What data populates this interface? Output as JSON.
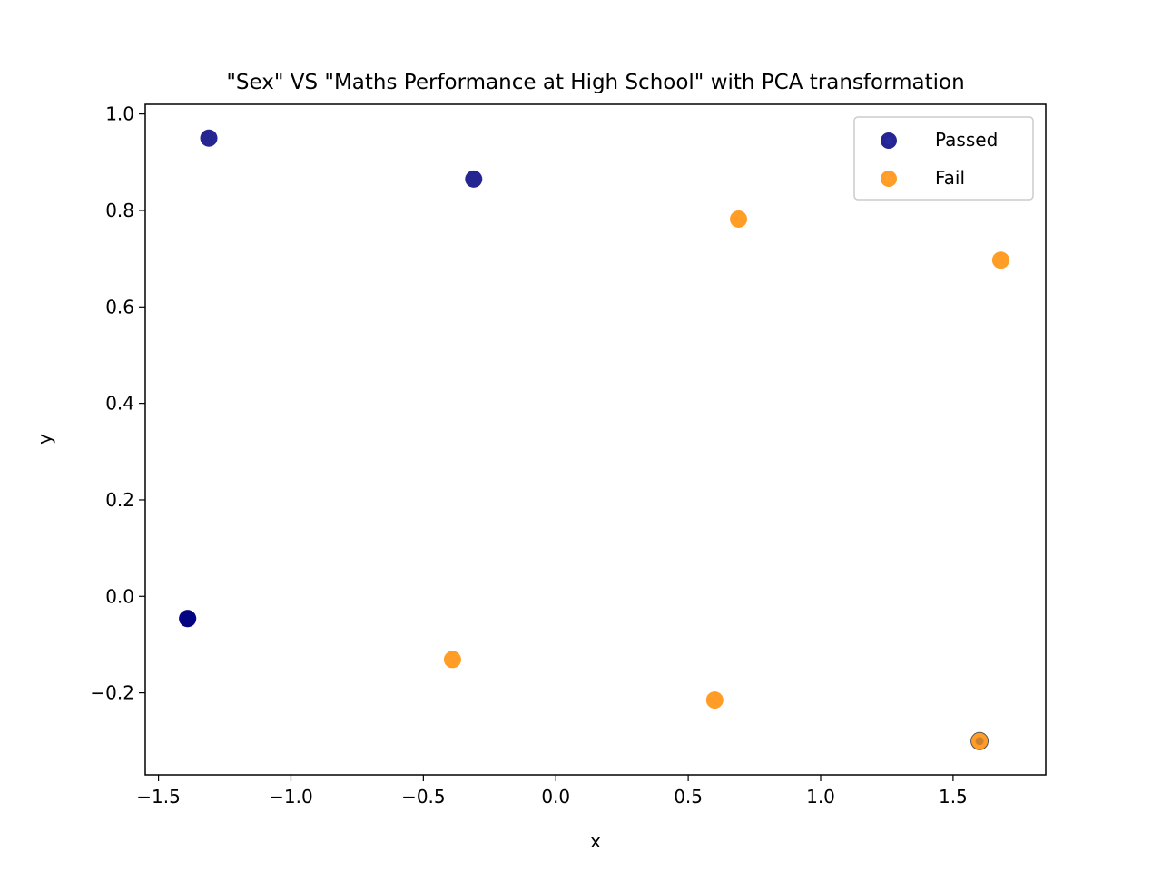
{
  "chart_data": {
    "type": "scatter",
    "title": "\"Sex\" VS \"Maths Performance at High School\" with PCA transformation",
    "xlabel": "x",
    "ylabel": "y",
    "xlim": [
      -1.55,
      1.85
    ],
    "ylim": [
      -0.37,
      1.02
    ],
    "xticks": [
      -1.5,
      -1.0,
      -0.5,
      0.0,
      0.5,
      1.0,
      1.5
    ],
    "xtick_labels": [
      "−1.5",
      "−1.0",
      "−0.5",
      "0.0",
      "0.5",
      "1.0",
      "1.5"
    ],
    "yticks": [
      -0.2,
      0.0,
      0.2,
      0.4,
      0.6,
      0.8,
      1.0
    ],
    "ytick_labels": [
      "−0.2",
      "0.0",
      "0.2",
      "0.4",
      "0.6",
      "0.8",
      "1.0"
    ],
    "grid": false,
    "legend_position": "top-right",
    "series": [
      {
        "name": "Passed",
        "color": "#000080",
        "points": [
          {
            "x": -1.31,
            "y": 0.95
          },
          {
            "x": -0.31,
            "y": 0.865
          },
          {
            "x": -1.39,
            "y": -0.046
          },
          {
            "x": -1.39,
            "y": -0.046
          }
        ]
      },
      {
        "name": "Fail",
        "color": "#ff8c00",
        "points": [
          {
            "x": 0.69,
            "y": 0.782
          },
          {
            "x": 1.68,
            "y": 0.697
          },
          {
            "x": -0.39,
            "y": -0.131
          },
          {
            "x": 0.6,
            "y": -0.215
          },
          {
            "x": 1.6,
            "y": -0.3
          }
        ]
      }
    ],
    "overlay_points": [
      {
        "x": 1.6,
        "y": -0.3,
        "color": "#cd7f32"
      }
    ]
  }
}
